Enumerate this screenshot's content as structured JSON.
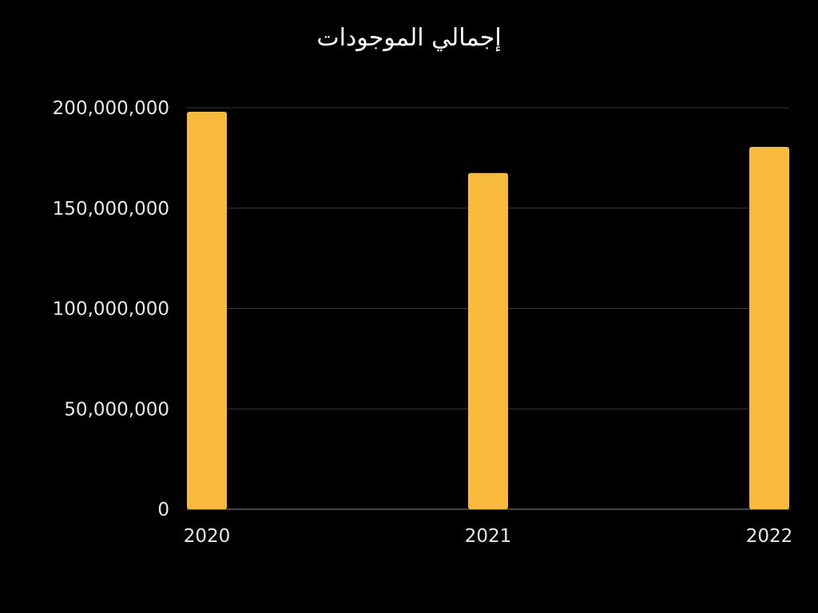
{
  "chart_data": {
    "type": "bar",
    "title": "إجمالي الموجودات",
    "xlabel": "",
    "ylabel": "",
    "categories": [
      "2020",
      "2021",
      "2022"
    ],
    "values": [
      198000000,
      167500000,
      180500000
    ],
    "ylim": [
      0,
      200000000
    ],
    "yticks": [
      "0",
      "50,000,000",
      "100,000,000",
      "150,000,000",
      "200,000,000"
    ],
    "ytick_values": [
      0,
      50000000,
      100000000,
      150000000,
      200000000
    ],
    "grid": true,
    "legend": "none",
    "colors": {
      "bar": "#F8BA3C",
      "background": "#000000",
      "grid": "#3a3a3a",
      "text": "#e8e8e8"
    }
  }
}
